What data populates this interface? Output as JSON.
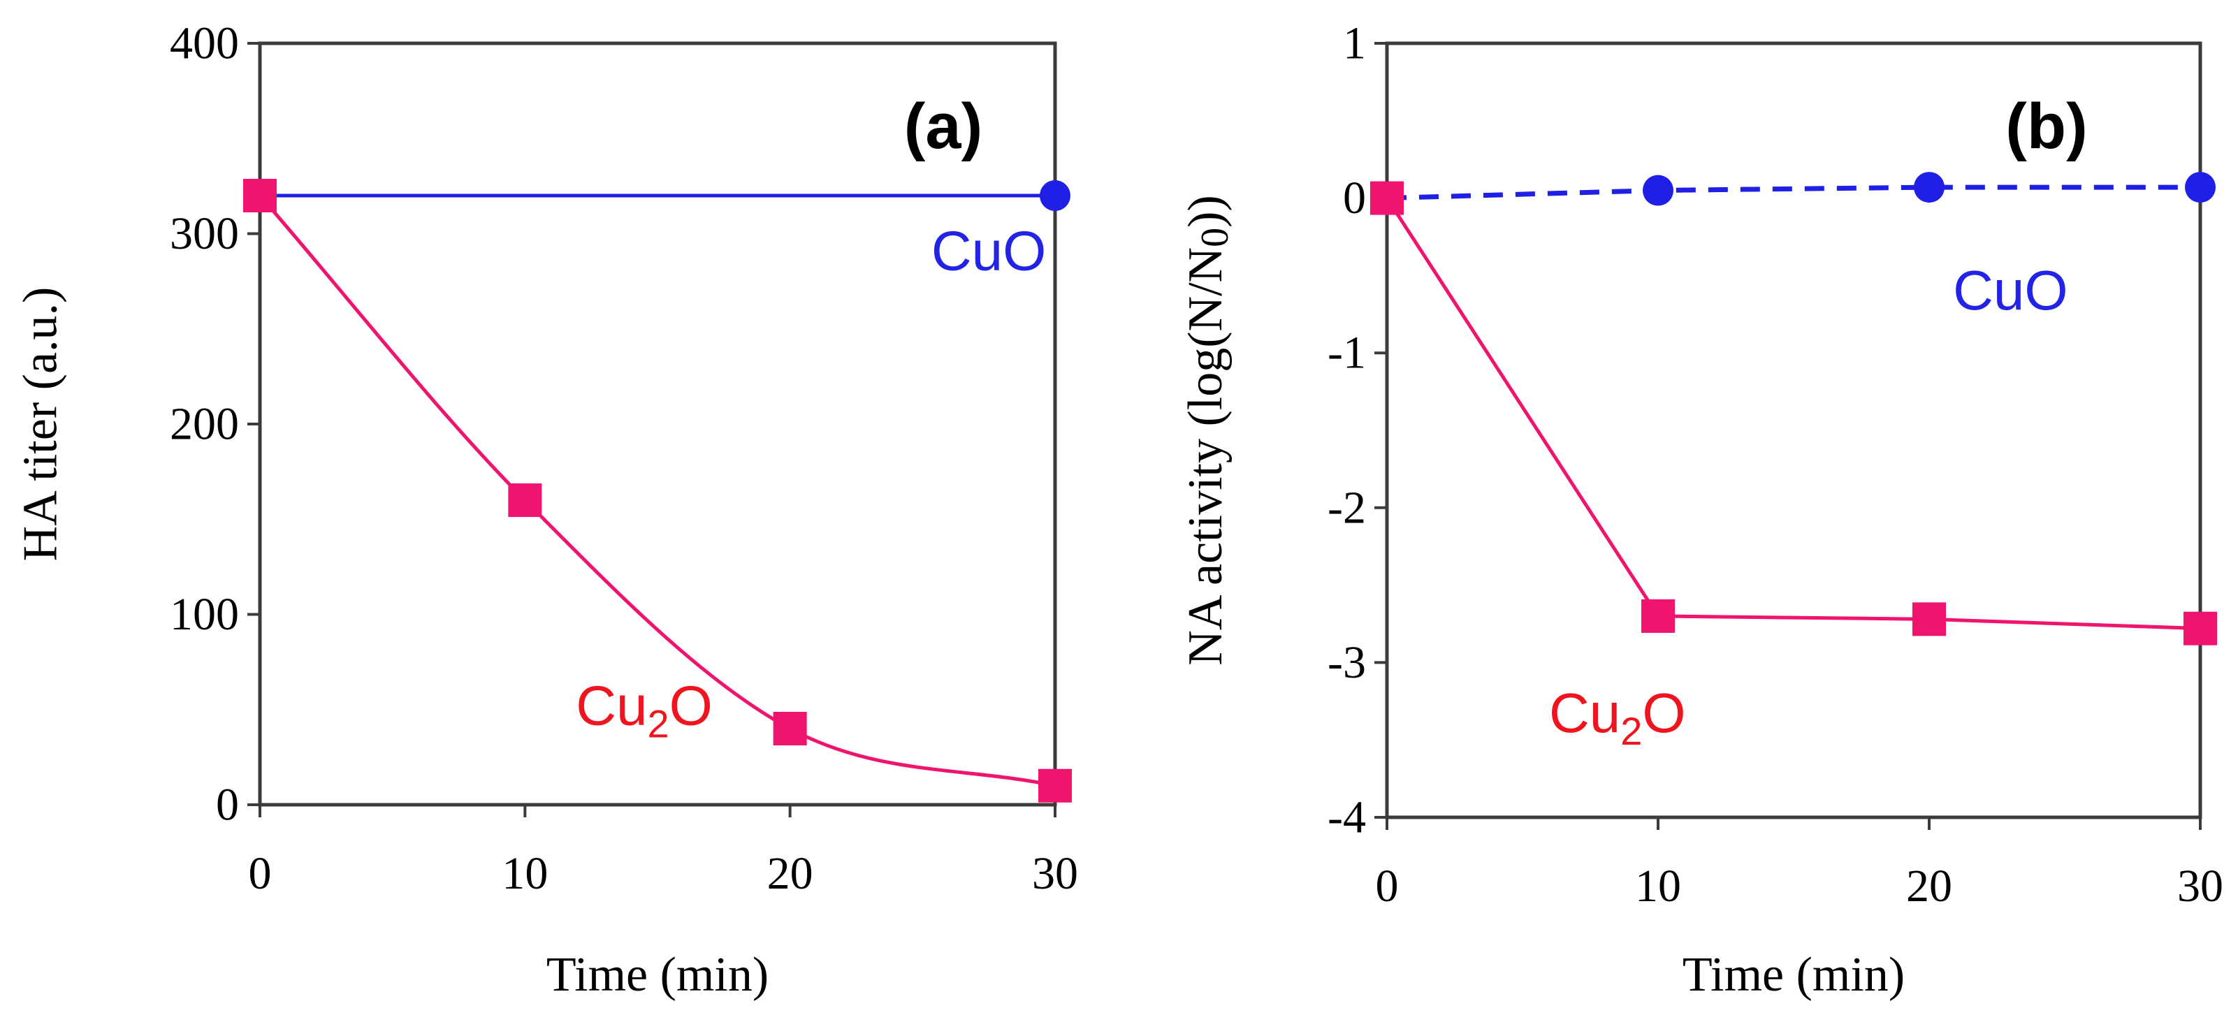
{
  "chart_data": [
    {
      "id": "a",
      "type": "line",
      "panel_label": "(a)",
      "xlabel": "Time (min)",
      "ylabel": "HA titer (a.u.)",
      "xlim": [
        0,
        30
      ],
      "ylim": [
        0,
        400
      ],
      "xticks": [
        0,
        10,
        20,
        30
      ],
      "yticks": [
        0,
        100,
        200,
        300,
        400
      ],
      "grid": false,
      "series": [
        {
          "name": "CuO",
          "label_main": "CuO",
          "label_sub": "",
          "label_tail": "",
          "color": "#1f1fe6",
          "label_color": "#2323e8",
          "marker": "circle",
          "dash": false,
          "smooth": false,
          "x": [
            0,
            30
          ],
          "values": [
            320,
            320
          ],
          "label_at": [
            27.5,
            281
          ]
        },
        {
          "name": "Cu2O",
          "label_main": "Cu",
          "label_sub": "2",
          "label_tail": "O",
          "color": "#f0146e",
          "label_color": "#f0141e",
          "marker": "square",
          "dash": false,
          "smooth": true,
          "x": [
            0,
            10,
            20,
            30
          ],
          "values": [
            320,
            160,
            40,
            10
          ],
          "label_at": [
            14.5,
            42
          ]
        }
      ]
    },
    {
      "id": "b",
      "type": "line",
      "panel_label": "(b)",
      "xlabel": "Time (min)",
      "ylabel": "NA activity  (log(N/N₀))",
      "ylabel_main": "NA activity  (log(N/N",
      "ylabel_sub": "0",
      "ylabel_tail": "))",
      "xlim": [
        0,
        30
      ],
      "ylim": [
        -4,
        1
      ],
      "xticks": [
        0,
        10,
        20,
        30
      ],
      "yticks": [
        -4,
        -3,
        -2,
        -1,
        0,
        1
      ],
      "grid": false,
      "series": [
        {
          "name": "CuO",
          "label_main": "CuO",
          "label_sub": "",
          "label_tail": "",
          "color": "#1f1fe6",
          "label_color": "#2323e8",
          "marker": "circle",
          "dash": true,
          "smooth": false,
          "x": [
            0,
            10,
            20,
            30
          ],
          "values": [
            0,
            0.05,
            0.07,
            0.07
          ],
          "label_at": [
            23.0,
            -0.72
          ]
        },
        {
          "name": "Cu2O",
          "label_main": "Cu",
          "label_sub": "2",
          "label_tail": "O",
          "color": "#f0146e",
          "label_color": "#f0141e",
          "marker": "square",
          "dash": false,
          "smooth": false,
          "x": [
            0,
            10,
            20,
            30
          ],
          "values": [
            0,
            -2.7,
            -2.72,
            -2.78
          ],
          "label_at": [
            8.5,
            -3.45
          ]
        }
      ]
    }
  ]
}
